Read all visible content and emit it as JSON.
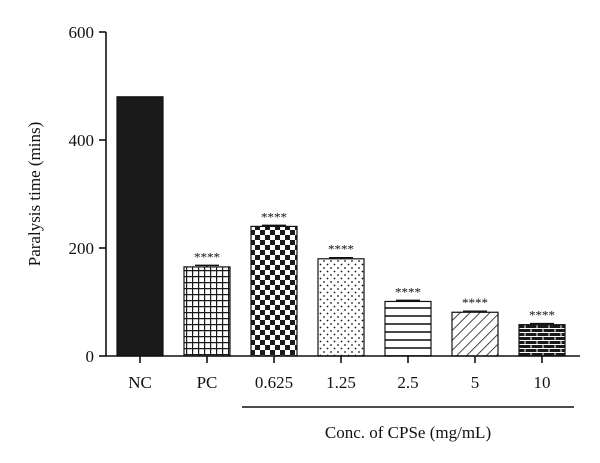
{
  "chart_data": {
    "type": "bar",
    "categories": [
      "NC",
      "PC",
      "0.625",
      "1.25",
      "2.5",
      "5",
      "10"
    ],
    "values": [
      480,
      165,
      240,
      180,
      101,
      81,
      58
    ],
    "errors": [
      0,
      3,
      2,
      2,
      2,
      2,
      2
    ],
    "significance": [
      "",
      "****",
      "****",
      "****",
      "****",
      "****",
      "****"
    ],
    "patterns": [
      "solid",
      "grid",
      "checker",
      "dots",
      "hlines",
      "diagonal",
      "brick"
    ],
    "ylabel": "Paralysis time (mins)",
    "ylim": [
      0,
      600
    ],
    "yticks": [
      0,
      200,
      400,
      600
    ],
    "group_label": "Conc. of CPSe (mg/mL)",
    "group_range": [
      "0.625",
      "10"
    ],
    "grid": false,
    "colors": {
      "bar_fill": "#1a1a1a",
      "pattern_bg": "#ffffff",
      "axis": "#111111"
    }
  }
}
